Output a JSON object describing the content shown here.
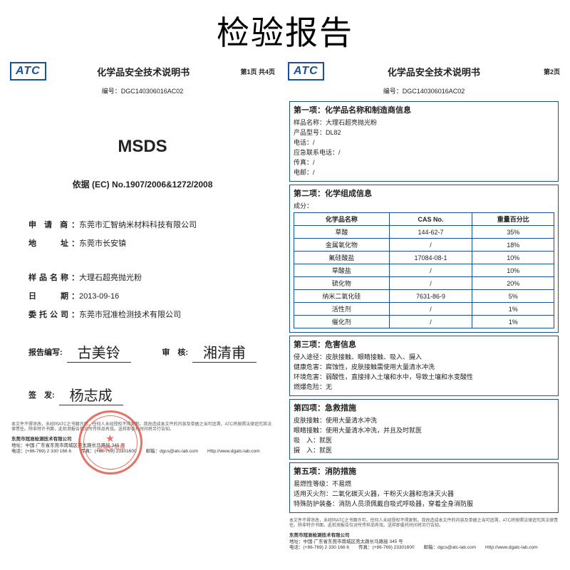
{
  "main_title": "检验报告",
  "logo_text": "ATC",
  "doc_title": "化学品安全技术说明书",
  "serial_label": "编号：",
  "serial_value": "DGC140306016AC02",
  "page1": {
    "page_num": "第1页 共4页",
    "msds": "MSDS",
    "basis_label": "依据",
    "basis_value": "(EC) No.1907/2006&1272/2008",
    "applicant_label": "申 请 商",
    "applicant_value": "东莞市汇智纳米材料科技有限公司",
    "address_label": "地　　址",
    "address_value": "东莞市长安镇",
    "sample_label": "样品名称",
    "sample_value": "大理石超亮抛光粉",
    "date_label": "日　　期",
    "date_value": "2013-09-16",
    "agent_label": "委托公司",
    "agent_value": "东莞市冠准检测技术有限公司",
    "compiled_label": "报告编写:",
    "compiled_sig": "古美铃",
    "review_label": "审　核:",
    "review_sig": "湘清甫",
    "issued_label": "签　发:",
    "issued_sig": "杨志成",
    "stamp_line1": "东莞市冠准检测技术有限公司",
    "stamp_line2": "检测专用章"
  },
  "page2": {
    "page_num": "第2页",
    "sec1_title": "第一项：化学品名称和制造商信息",
    "sec1": {
      "l1": "样品名称：大理石超亮抛光粉",
      "l2": "产品型号：DL82",
      "l3": "电话：/",
      "l4": "应急联系电话：/",
      "l5": "传真：/",
      "l6": "电邮：/"
    },
    "sec2_title": "第二项：化学组成信息",
    "sec2_sub": "成分：",
    "comp_head": {
      "c1": "化学品名称",
      "c2": "CAS No.",
      "c3": "重量百分比"
    },
    "comp_rows": [
      [
        "草酸",
        "144-62-7",
        "35%"
      ],
      [
        "金属氧化物",
        "/",
        "18%"
      ],
      [
        "氟硅酸盐",
        "17084-08-1",
        "10%"
      ],
      [
        "草酸盐",
        "/",
        "10%"
      ],
      [
        "硫化物",
        "/",
        "20%"
      ],
      [
        "纳米二氧化硅",
        "7631-86-9",
        "5%"
      ],
      [
        "活性剂",
        "/",
        "1%"
      ],
      [
        "催化剂",
        "/",
        "1%"
      ]
    ],
    "sec3_title": "第三项：危害信息",
    "sec3": {
      "l1": "侵入途径：皮肤接触、眼睛接触、吸入、摄入",
      "l2": "健康危害：腐蚀性，皮肤接触需使用大量清水冲洗",
      "l3": "环境危害：弱酸性，直接排入土壤和水中，导致土壤和水变酸性",
      "l4": "燃爆危险：无"
    },
    "sec4_title": "第四项：急救措施",
    "sec4": {
      "l1": "皮肤接触：使用大量清水冲洗",
      "l2": "眼睛接触：使用大量清水冲洗，并且及时就医",
      "l3": "吸　入：就医",
      "l4": "摄　入：就医"
    },
    "sec5_title": "第五项：消防措施",
    "sec5": {
      "l1": "易燃性等级：不易燃",
      "l2": "适用灭火剂：二氧化碳灭火器，干粉灭火器和泡沫灭火器",
      "l3": "特殊防护装备：消防人员须佩戴自吸式呼吸器，穿着全身消防服"
    }
  },
  "footnote_text": "本文件不得涂改，未经同ATC之书面许可，任何人未经授权不得复制。我改造成本文件的内容及单据之当可追溯，ATC将按照法律追究其法律责任。除非特许书面，此检测报告仅对所传样品有效。送样即委托时间将另行告知。",
  "footer": {
    "company": "东莞市冠准检测技术有限公司",
    "addr": "地址：中国·广东省东莞市南城区莞太路长马路接 345 号",
    "tel": "电话：(+86-769) 2 330 166 6　　传真：(+86-769) 23301600　　邮箱：dgcs@atc-lab.com　　Http://www.dgatc-lab.com"
  },
  "colors": {
    "brand": "#1a4fa0",
    "stamp": "#d43b2e"
  }
}
